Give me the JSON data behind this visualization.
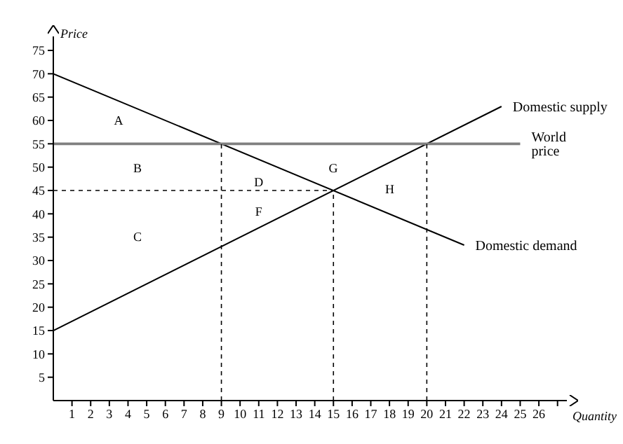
{
  "chart_data": {
    "type": "line",
    "xlabel": "Quantity",
    "ylabel": "Price",
    "xlim": [
      0,
      27.5
    ],
    "ylim": [
      0,
      78
    ],
    "xticks": [
      1,
      2,
      3,
      4,
      5,
      6,
      7,
      8,
      9,
      10,
      11,
      12,
      13,
      14,
      15,
      16,
      17,
      18,
      19,
      20,
      21,
      22,
      23,
      24,
      25,
      26,
      {
        "value": 27,
        "label": null
      }
    ],
    "yticks": [
      5,
      10,
      15,
      20,
      25,
      30,
      35,
      40,
      45,
      50,
      55,
      60,
      65,
      70,
      75
    ],
    "grid": false,
    "legend": false,
    "marker": "none",
    "series": [
      {
        "name": "Domestic supply",
        "color": "#000000",
        "x": [
          0,
          24
        ],
        "values": [
          15,
          63
        ]
      },
      {
        "name": "Domestic demand",
        "color": "#000000",
        "x": [
          0,
          22
        ],
        "values": [
          70,
          33.3
        ]
      },
      {
        "name": "World price",
        "color": "#808080",
        "x": [
          0,
          25
        ],
        "values": [
          55,
          55
        ]
      },
      {
        "color": "#000000",
        "line_style": "dashed",
        "x": [
          0,
          15
        ],
        "values": [
          45,
          45
        ]
      },
      {
        "color": "#000000",
        "line_style": "dashed",
        "x": [
          9,
          9
        ],
        "values": [
          0,
          55
        ]
      },
      {
        "color": "#000000",
        "line_style": "dashed",
        "x": [
          15,
          15
        ],
        "values": [
          0,
          45
        ]
      },
      {
        "color": "#000000",
        "line_style": "dashed",
        "x": [
          20,
          20
        ],
        "values": [
          0,
          55
        ]
      }
    ],
    "annotations": [
      "A",
      "B",
      "C",
      "D",
      "F",
      "G",
      "H"
    ]
  }
}
